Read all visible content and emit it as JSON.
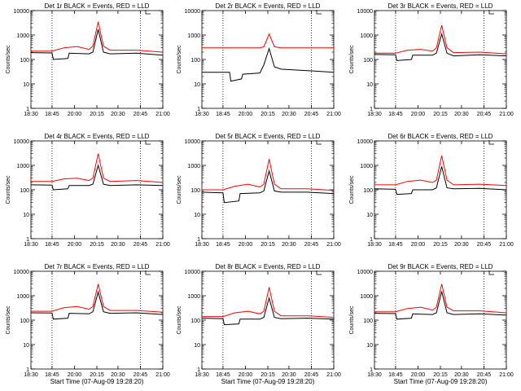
{
  "chart_data": {
    "type": "line",
    "y_scale": "log",
    "ylim": [
      1,
      10000
    ],
    "x_tick_labels": [
      "18:30",
      "18:45",
      "20:00",
      "20:15",
      "20:30",
      "20:45",
      "21:00"
    ],
    "y_tick_labels": [
      "1",
      "10",
      "100",
      "1000",
      "10000"
    ],
    "ylabel": "Counts/sec",
    "xlabel": "Start Time (07-Aug-09 19:28:20)",
    "grid": "dotted vertical lines",
    "colors": {
      "events": "#000000",
      "lld": "#ff0000"
    },
    "series_legend": "BLACK = Events, RED = LLD",
    "panels": [
      {
        "title": "Det 1r BLACK = Events, RED = LLD",
        "show_xlabel": false,
        "series": [
          {
            "name": "Events",
            "x": [
              0.0,
              0.16,
              0.17,
              0.28,
              0.29,
              0.44,
              0.47,
              0.51,
              0.55,
              0.6,
              0.8,
              1.0
            ],
            "y": [
              190,
              185,
              100,
              110,
              180,
              170,
              200,
              1700,
              200,
              170,
              180,
              150
            ]
          },
          {
            "name": "LLD",
            "x": [
              0.0,
              0.16,
              0.25,
              0.35,
              0.44,
              0.47,
              0.51,
              0.55,
              0.6,
              0.8,
              1.0
            ],
            "y": [
              220,
              220,
              300,
              340,
              260,
              350,
              3500,
              350,
              240,
              240,
              200
            ]
          }
        ]
      },
      {
        "title": "Det 2r BLACK = Events, RED = LLD",
        "show_xlabel": false,
        "series": [
          {
            "name": "Events",
            "x": [
              0.0,
              0.16,
              0.21,
              0.22,
              0.3,
              0.31,
              0.44,
              0.47,
              0.51,
              0.55,
              0.6,
              0.8,
              1.0
            ],
            "y": [
              30,
              30,
              30,
              13,
              16,
              25,
              28,
              60,
              280,
              50,
              40,
              35,
              30
            ]
          },
          {
            "name": "LLD",
            "x": [
              0.0,
              0.44,
              0.47,
              0.51,
              0.55,
              0.6,
              1.0
            ],
            "y": [
              300,
              300,
              330,
              1100,
              330,
              300,
              300
            ]
          }
        ]
      },
      {
        "title": "Det 3r BLACK = Events, RED = LLD",
        "show_xlabel": false,
        "series": [
          {
            "name": "Events",
            "x": [
              0.0,
              0.16,
              0.17,
              0.28,
              0.29,
              0.44,
              0.47,
              0.51,
              0.55,
              0.6,
              0.8,
              1.0
            ],
            "y": [
              160,
              155,
              90,
              100,
              150,
              150,
              180,
              1100,
              180,
              140,
              155,
              140
            ]
          },
          {
            "name": "LLD",
            "x": [
              0.0,
              0.16,
              0.25,
              0.35,
              0.44,
              0.47,
              0.51,
              0.55,
              0.6,
              0.8,
              1.0
            ],
            "y": [
              180,
              180,
              240,
              260,
              220,
              300,
              2500,
              300,
              190,
              200,
              170
            ]
          }
        ]
      },
      {
        "title": "Det 4r BLACK = Events, RED = LLD",
        "show_xlabel": false,
        "series": [
          {
            "name": "Events",
            "x": [
              0.0,
              0.16,
              0.17,
              0.28,
              0.29,
              0.44,
              0.47,
              0.51,
              0.55,
              0.6,
              0.8,
              1.0
            ],
            "y": [
              160,
              155,
              100,
              110,
              150,
              150,
              170,
              1000,
              170,
              150,
              160,
              150
            ]
          },
          {
            "name": "LLD",
            "x": [
              0.0,
              0.16,
              0.25,
              0.35,
              0.44,
              0.47,
              0.51,
              0.55,
              0.6,
              0.8,
              1.0
            ],
            "y": [
              220,
              220,
              280,
              300,
              240,
              300,
              3000,
              300,
              220,
              240,
              200
            ]
          }
        ]
      },
      {
        "title": "Det 5r BLACK = Events, RED = LLD",
        "show_xlabel": false,
        "series": [
          {
            "name": "Events",
            "x": [
              0.0,
              0.16,
              0.17,
              0.28,
              0.29,
              0.44,
              0.47,
              0.51,
              0.55,
              0.6,
              0.8,
              1.0
            ],
            "y": [
              80,
              75,
              30,
              35,
              70,
              75,
              90,
              600,
              90,
              80,
              80,
              70
            ]
          },
          {
            "name": "LLD",
            "x": [
              0.0,
              0.16,
              0.25,
              0.35,
              0.44,
              0.47,
              0.51,
              0.55,
              0.6,
              0.8,
              1.0
            ],
            "y": [
              100,
              100,
              140,
              170,
              130,
              170,
              1800,
              170,
              110,
              110,
              95
            ]
          }
        ]
      },
      {
        "title": "Det 6r BLACK = Events, RED = LLD",
        "show_xlabel": false,
        "series": [
          {
            "name": "Events",
            "x": [
              0.0,
              0.16,
              0.17,
              0.28,
              0.29,
              0.44,
              0.47,
              0.51,
              0.55,
              0.6,
              0.8,
              1.0
            ],
            "y": [
              110,
              105,
              65,
              70,
              100,
              100,
              120,
              900,
              120,
              110,
              115,
              100
            ]
          },
          {
            "name": "LLD",
            "x": [
              0.0,
              0.16,
              0.25,
              0.35,
              0.44,
              0.47,
              0.51,
              0.55,
              0.6,
              0.8,
              1.0
            ],
            "y": [
              160,
              160,
              220,
              250,
              200,
              250,
              2500,
              250,
              160,
              170,
              150
            ]
          }
        ]
      },
      {
        "title": "Det 7r BLACK = Events, RED = LLD",
        "show_xlabel": true,
        "series": [
          {
            "name": "Events",
            "x": [
              0.0,
              0.16,
              0.17,
              0.28,
              0.29,
              0.44,
              0.47,
              0.51,
              0.55,
              0.6,
              0.8,
              1.0
            ],
            "y": [
              200,
              195,
              110,
              120,
              190,
              180,
              220,
              1400,
              220,
              190,
              200,
              170
            ]
          },
          {
            "name": "LLD",
            "x": [
              0.0,
              0.16,
              0.25,
              0.35,
              0.44,
              0.47,
              0.51,
              0.55,
              0.6,
              0.8,
              1.0
            ],
            "y": [
              230,
              230,
              320,
              360,
              280,
              360,
              3000,
              360,
              250,
              250,
              210
            ]
          }
        ]
      },
      {
        "title": "Det 8r BLACK = Events, RED = LLD",
        "show_xlabel": true,
        "series": [
          {
            "name": "Events",
            "x": [
              0.0,
              0.16,
              0.17,
              0.28,
              0.29,
              0.44,
              0.47,
              0.51,
              0.55,
              0.6,
              0.8,
              1.0
            ],
            "y": [
              120,
              115,
              65,
              70,
              110,
              110,
              130,
              800,
              130,
              115,
              120,
              110
            ]
          },
          {
            "name": "LLD",
            "x": [
              0.0,
              0.16,
              0.25,
              0.35,
              0.44,
              0.47,
              0.51,
              0.55,
              0.6,
              0.8,
              1.0
            ],
            "y": [
              140,
              140,
              200,
              230,
              180,
              230,
              2200,
              230,
              150,
              150,
              130
            ]
          }
        ]
      },
      {
        "title": "Det 9r BLACK = Events, RED = LLD",
        "show_xlabel": true,
        "series": [
          {
            "name": "Events",
            "x": [
              0.0,
              0.16,
              0.17,
              0.28,
              0.29,
              0.44,
              0.47,
              0.51,
              0.55,
              0.6,
              0.8,
              1.0
            ],
            "y": [
              190,
              185,
              110,
              120,
              180,
              170,
              200,
              1500,
              200,
              170,
              180,
              160
            ]
          },
          {
            "name": "LLD",
            "x": [
              0.0,
              0.16,
              0.25,
              0.35,
              0.44,
              0.47,
              0.51,
              0.55,
              0.6,
              0.8,
              1.0
            ],
            "y": [
              220,
              220,
              300,
              340,
              260,
              340,
              3000,
              340,
              240,
              240,
              200
            ]
          }
        ]
      }
    ]
  }
}
